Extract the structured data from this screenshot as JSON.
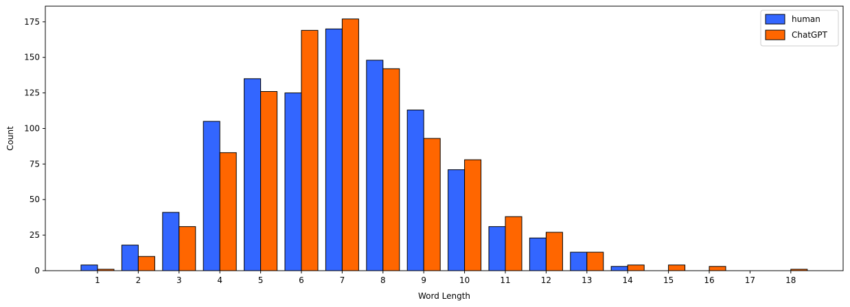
{
  "chart_data": {
    "type": "bar",
    "title": "",
    "xlabel": "Word Length",
    "ylabel": "Count",
    "categories": [
      "1",
      "2",
      "3",
      "4",
      "5",
      "6",
      "7",
      "8",
      "9",
      "10",
      "11",
      "12",
      "13",
      "14",
      "15",
      "16",
      "17",
      "18"
    ],
    "series": [
      {
        "name": "human",
        "color": "#3366ff",
        "values": [
          4,
          18,
          41,
          105,
          135,
          125,
          170,
          148,
          113,
          71,
          31,
          23,
          13,
          3,
          0,
          0,
          0,
          0
        ]
      },
      {
        "name": "ChatGPT",
        "color": "#ff6600",
        "values": [
          1,
          10,
          31,
          83,
          126,
          169,
          177,
          142,
          93,
          78,
          38,
          27,
          13,
          4,
          4,
          3,
          0,
          1
        ]
      }
    ],
    "ylim": [
      0,
      186
    ],
    "yticks": [
      0,
      25,
      50,
      75,
      100,
      125,
      150,
      175
    ],
    "grid": false,
    "legend": "top-right"
  }
}
